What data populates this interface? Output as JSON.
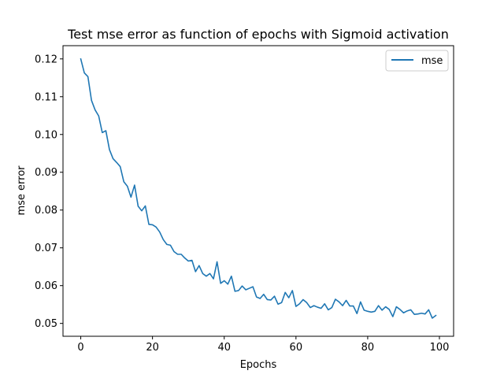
{
  "chart_data": {
    "type": "line",
    "title": "Test mse error as function of epochs with Sigmoid activation",
    "xlabel": "Epochs",
    "ylabel": "mse error",
    "xlim": [
      -4.95,
      103.95
    ],
    "ylim": [
      0.0466,
      0.1235
    ],
    "xticks": [
      0,
      20,
      40,
      60,
      80,
      100
    ],
    "yticks": [
      0.05,
      0.06,
      0.07,
      0.08,
      0.09,
      0.1,
      0.11,
      0.12
    ],
    "ytick_labels": [
      "0.05",
      "0.06",
      "0.07",
      "0.08",
      "0.09",
      "0.10",
      "0.11",
      "0.12"
    ],
    "grid": false,
    "legend": {
      "position": "top-right"
    },
    "series": [
      {
        "name": "mse",
        "color": "#1f77b4",
        "x": [
          0,
          1,
          2,
          3,
          4,
          5,
          6,
          7,
          8,
          9,
          10,
          11,
          12,
          13,
          14,
          15,
          16,
          17,
          18,
          19,
          20,
          21,
          22,
          23,
          24,
          25,
          26,
          27,
          28,
          29,
          30,
          31,
          32,
          33,
          34,
          35,
          36,
          37,
          38,
          39,
          40,
          41,
          42,
          43,
          44,
          45,
          46,
          47,
          48,
          49,
          50,
          51,
          52,
          53,
          54,
          55,
          56,
          57,
          58,
          59,
          60,
          61,
          62,
          63,
          64,
          65,
          66,
          67,
          68,
          69,
          70,
          71,
          72,
          73,
          74,
          75,
          76,
          77,
          78,
          79,
          80,
          81,
          82,
          83,
          84,
          85,
          86,
          87,
          88,
          89,
          90,
          91,
          92,
          93,
          94,
          95,
          96,
          97,
          98,
          99
        ],
        "values": [
          0.12,
          0.1163,
          0.1153,
          0.109,
          0.1065,
          0.1049,
          0.1005,
          0.101,
          0.096,
          0.0936,
          0.0926,
          0.0915,
          0.0875,
          0.0863,
          0.0834,
          0.0866,
          0.081,
          0.0798,
          0.0811,
          0.0762,
          0.0761,
          0.0755,
          0.0742,
          0.0722,
          0.0709,
          0.0707,
          0.069,
          0.0683,
          0.0683,
          0.0673,
          0.0665,
          0.0667,
          0.0637,
          0.0653,
          0.0632,
          0.0625,
          0.0632,
          0.0618,
          0.0663,
          0.0606,
          0.0613,
          0.0604,
          0.0625,
          0.0585,
          0.0587,
          0.0599,
          0.0589,
          0.0593,
          0.0597,
          0.057,
          0.0566,
          0.0577,
          0.0563,
          0.0562,
          0.0572,
          0.0551,
          0.0555,
          0.0582,
          0.0568,
          0.0587,
          0.0545,
          0.0552,
          0.0563,
          0.0555,
          0.0542,
          0.0547,
          0.0543,
          0.054,
          0.0552,
          0.0536,
          0.0542,
          0.0564,
          0.0557,
          0.0547,
          0.0561,
          0.0546,
          0.0546,
          0.0526,
          0.0557,
          0.0535,
          0.0532,
          0.053,
          0.0532,
          0.0547,
          0.0535,
          0.0544,
          0.0537,
          0.0518,
          0.0544,
          0.0537,
          0.0528,
          0.0533,
          0.0536,
          0.0524,
          0.0525,
          0.0527,
          0.0525,
          0.0536,
          0.0514,
          0.0521
        ]
      }
    ]
  }
}
